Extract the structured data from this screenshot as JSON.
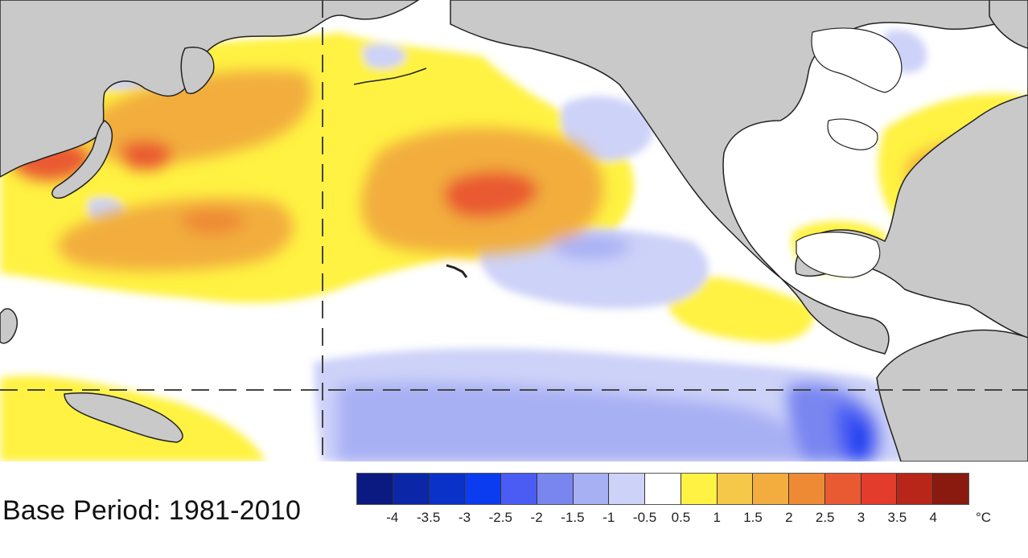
{
  "map": {
    "land_color": "#c9c9c9",
    "ocean_neutral_color": "#ffffff",
    "coastline_color": "#222222",
    "reference_line_color": "#444444"
  },
  "legend": {
    "base_period": "Base Period: 1981-2010",
    "unit": "°C",
    "ticks": [
      "-4",
      "-3.5",
      "-3",
      "-2.5",
      "-2",
      "-1.5",
      "-1",
      "-0.5",
      "0.5",
      "1",
      "1.5",
      "2",
      "2.5",
      "3",
      "3.5",
      "4"
    ],
    "colors": [
      "#0a1a80",
      "#0b27a8",
      "#0a32c8",
      "#0c3cf0",
      "#4a5cf4",
      "#7986f0",
      "#a8b0f4",
      "#cdd2f8",
      "#ffffff",
      "#fff243",
      "#f6c84a",
      "#f2ad3e",
      "#ef8a34",
      "#e95a32",
      "#e33b2c",
      "#b82519",
      "#8a1a10"
    ]
  }
}
